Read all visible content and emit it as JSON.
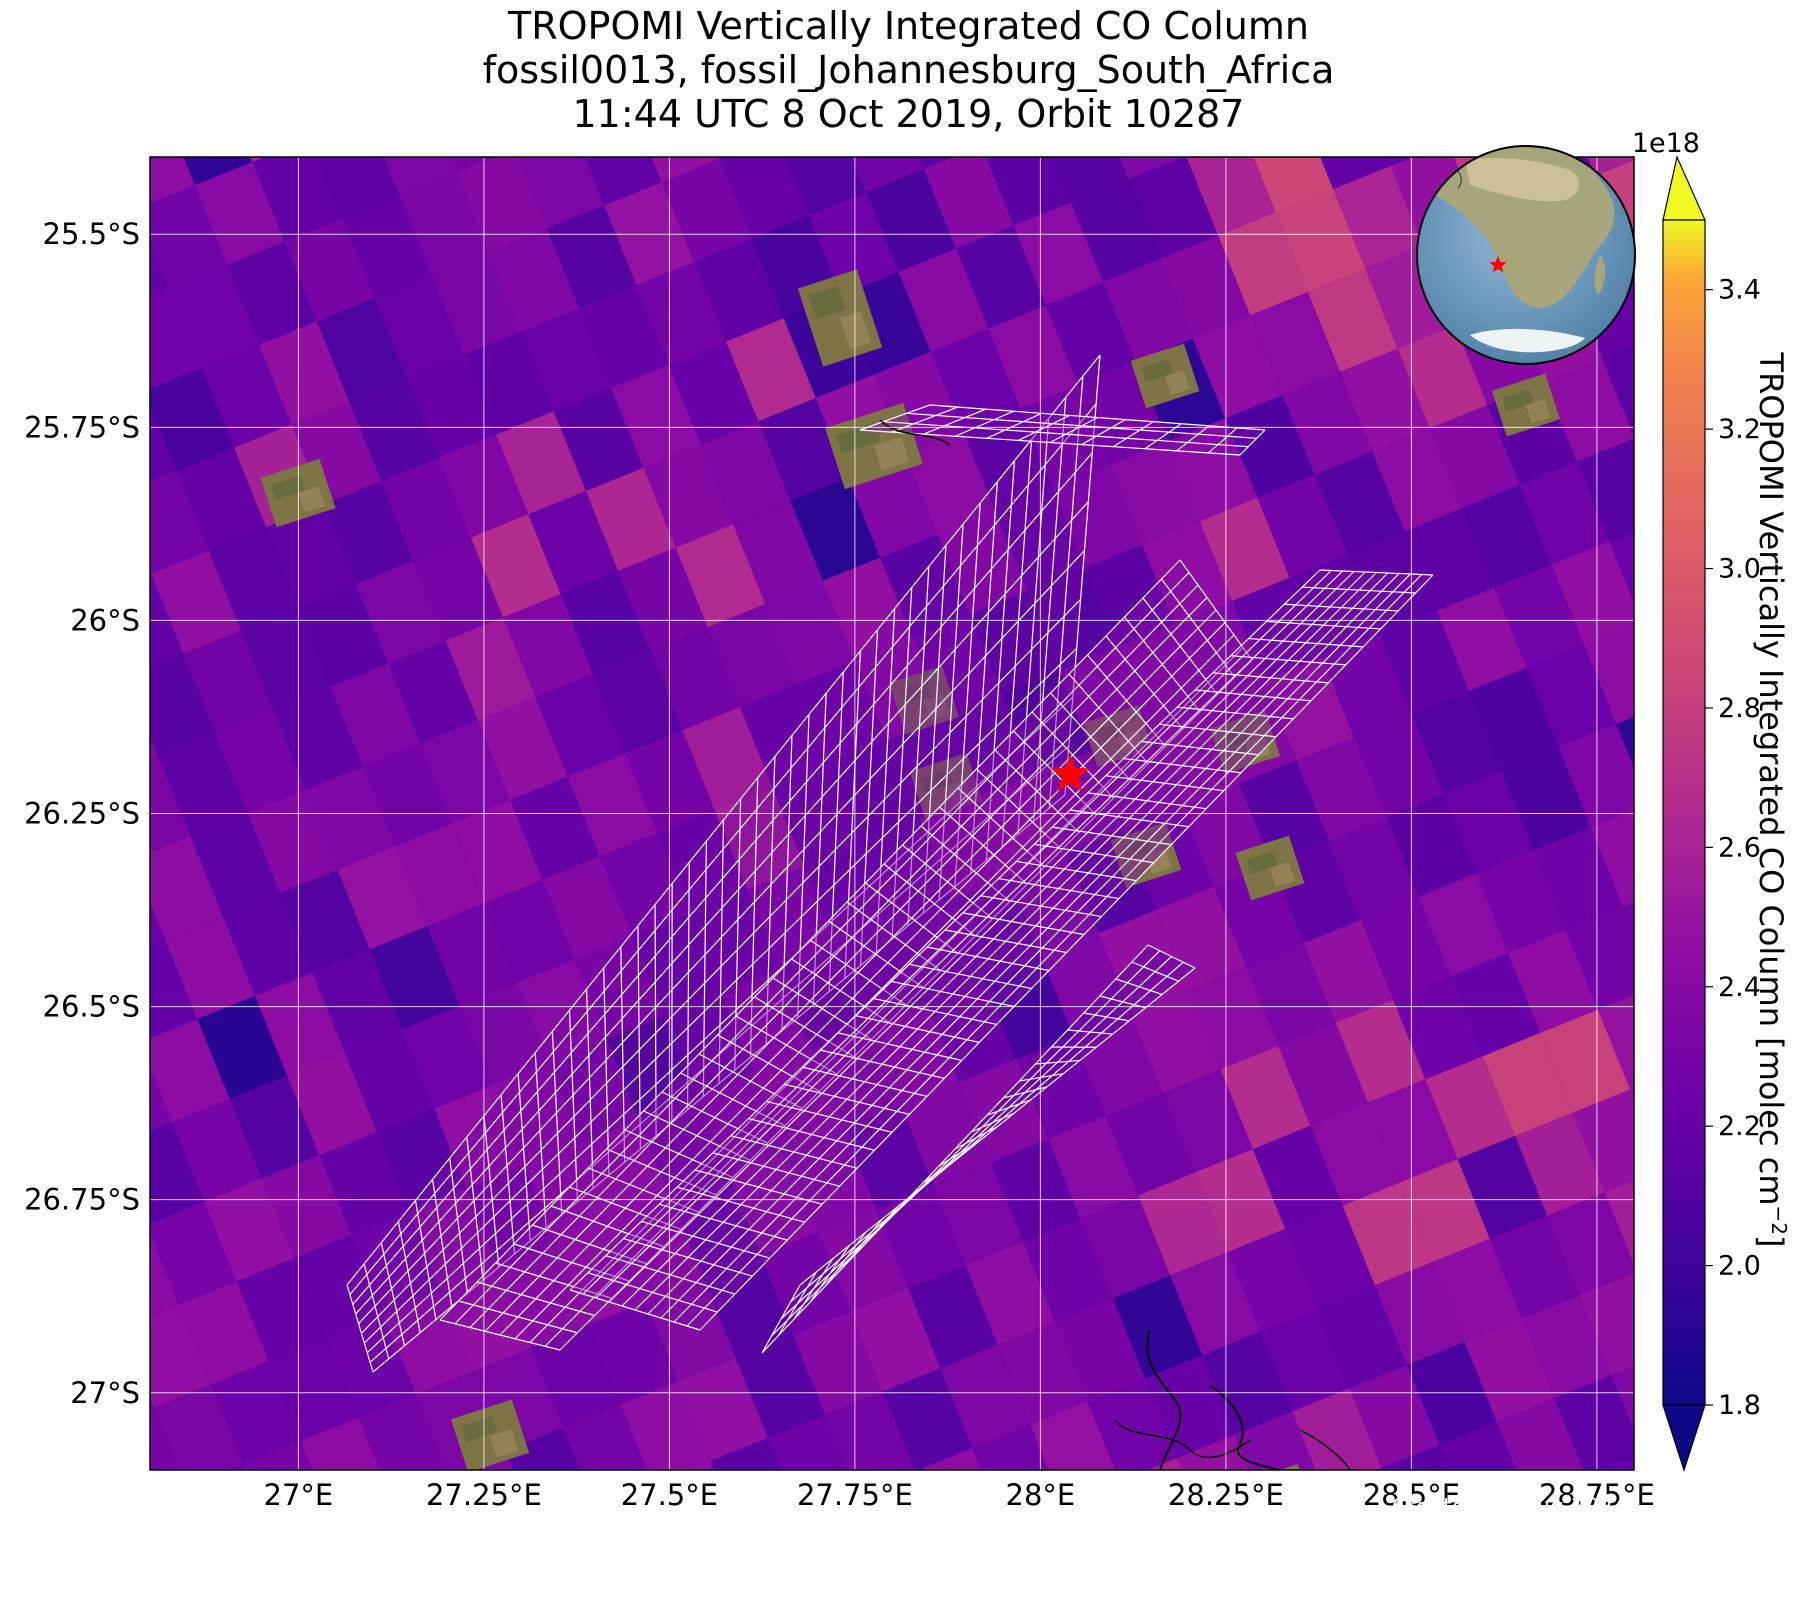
{
  "title": {
    "line1": "TROPOMI Vertically Integrated CO Column",
    "line2": "fossil0013, fossil_Johannesburg_South_Africa",
    "line3": "11:44 UTC 8 Oct 2019, Orbit 10287"
  },
  "map": {
    "lon_range": [
      26.8,
      28.8
    ],
    "lat_range": [
      -27.1,
      -25.4
    ],
    "lon_ticks": [
      {
        "value": 27.0,
        "label": "27°E"
      },
      {
        "value": 27.25,
        "label": "27.25°E"
      },
      {
        "value": 27.5,
        "label": "27.5°E"
      },
      {
        "value": 27.75,
        "label": "27.75°E"
      },
      {
        "value": 28.0,
        "label": "28°E"
      },
      {
        "value": 28.25,
        "label": "28.25°E"
      },
      {
        "value": 28.5,
        "label": "28.5°E"
      },
      {
        "value": 28.75,
        "label": "28.75°E"
      }
    ],
    "lat_ticks": [
      {
        "value": -25.5,
        "label": "25.5°S"
      },
      {
        "value": -25.75,
        "label": "25.75°S"
      },
      {
        "value": -26.0,
        "label": "26°S"
      },
      {
        "value": -26.25,
        "label": "26.25°S"
      },
      {
        "value": -26.5,
        "label": "26.5°S"
      },
      {
        "value": -26.75,
        "label": "26.75°S"
      },
      {
        "value": -27.0,
        "label": "27°S"
      }
    ],
    "gridlines": true,
    "target": {
      "lon": 28.04,
      "lat": -26.2,
      "marker": "red-star",
      "color": "#ff0000"
    },
    "background_colormap": "plasma"
  },
  "colorbar": {
    "min": 1.8,
    "max": 3.5,
    "multiplier": "1e18",
    "ticks": [
      "1.8",
      "2.0",
      "2.2",
      "2.4",
      "2.6",
      "2.8",
      "3.0",
      "3.2",
      "3.4"
    ],
    "tick_values": [
      1.8,
      2.0,
      2.2,
      2.4,
      2.6,
      2.8,
      3.0,
      3.2,
      3.4
    ],
    "label": "TROPOMI Vertically Integrated CO Column [molec cm",
    "label_superscript": "−2",
    "label_close": "]",
    "extend": "both",
    "colormap": "plasma"
  },
  "inset_globe": {
    "marker": "red-star",
    "region": "southern-africa"
  },
  "credits": {
    "created": "Created 29 Aug 2024",
    "source": "Source: NASA/JPL-Caltech"
  }
}
